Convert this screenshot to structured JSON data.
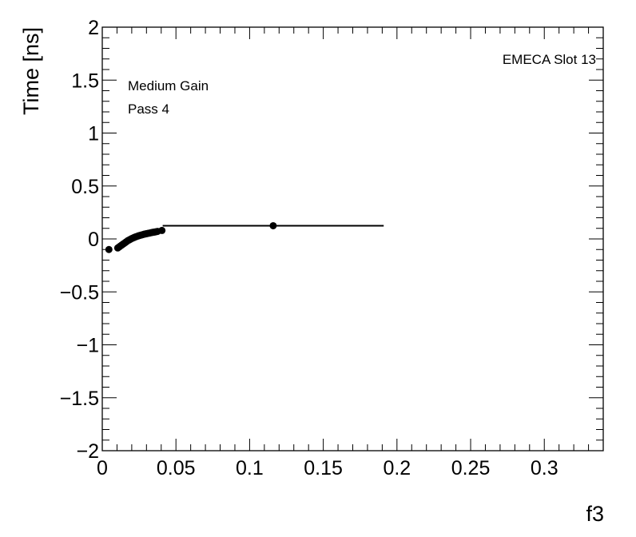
{
  "chart_data": {
    "type": "scatter",
    "xlabel": "f3",
    "ylabel": "Time [ns]",
    "xlim": [
      0,
      0.34
    ],
    "ylim": [
      -2,
      2
    ],
    "x_ticks": [
      {
        "value": 0,
        "label": "0"
      },
      {
        "value": 0.05,
        "label": "0.05"
      },
      {
        "value": 0.1,
        "label": "0.1"
      },
      {
        "value": 0.15,
        "label": "0.15"
      },
      {
        "value": 0.2,
        "label": "0.2"
      },
      {
        "value": 0.25,
        "label": "0.25"
      },
      {
        "value": 0.3,
        "label": "0.3"
      }
    ],
    "y_ticks": [
      {
        "value": -2,
        "label": "−2"
      },
      {
        "value": -1.5,
        "label": "−1.5"
      },
      {
        "value": -1,
        "label": "−1"
      },
      {
        "value": -0.5,
        "label": "−0.5"
      },
      {
        "value": 0,
        "label": "0"
      },
      {
        "value": 0.5,
        "label": "0.5"
      },
      {
        "value": 1,
        "label": "1"
      },
      {
        "value": 1.5,
        "label": "1.5"
      },
      {
        "value": 2,
        "label": "2"
      }
    ],
    "grid": false,
    "annotations": {
      "slot": "EMECA Slot 13",
      "gain": "Medium Gain",
      "pass": "Pass 4"
    },
    "marker_color": "#000000",
    "points": [
      {
        "x": 0.0045,
        "y": -0.1,
        "xerr": 0.001
      },
      {
        "x": 0.0105,
        "y": -0.085,
        "xerr": 0.001
      },
      {
        "x": 0.0115,
        "y": -0.075,
        "xerr": 0.001
      },
      {
        "x": 0.0125,
        "y": -0.065,
        "xerr": 0.001
      },
      {
        "x": 0.0135,
        "y": -0.055,
        "xerr": 0.001
      },
      {
        "x": 0.0145,
        "y": -0.045,
        "xerr": 0.001
      },
      {
        "x": 0.0155,
        "y": -0.035,
        "xerr": 0.001
      },
      {
        "x": 0.0165,
        "y": -0.025,
        "xerr": 0.001
      },
      {
        "x": 0.0175,
        "y": -0.015,
        "xerr": 0.001
      },
      {
        "x": 0.0185,
        "y": -0.008,
        "xerr": 0.001
      },
      {
        "x": 0.0195,
        "y": 0.0,
        "xerr": 0.001
      },
      {
        "x": 0.0205,
        "y": 0.007,
        "xerr": 0.001
      },
      {
        "x": 0.0215,
        "y": 0.013,
        "xerr": 0.001
      },
      {
        "x": 0.0225,
        "y": 0.019,
        "xerr": 0.001
      },
      {
        "x": 0.0235,
        "y": 0.024,
        "xerr": 0.001
      },
      {
        "x": 0.0245,
        "y": 0.029,
        "xerr": 0.001
      },
      {
        "x": 0.0255,
        "y": 0.033,
        "xerr": 0.001
      },
      {
        "x": 0.0265,
        "y": 0.037,
        "xerr": 0.001
      },
      {
        "x": 0.0275,
        "y": 0.041,
        "xerr": 0.001
      },
      {
        "x": 0.0285,
        "y": 0.045,
        "xerr": 0.001
      },
      {
        "x": 0.0295,
        "y": 0.048,
        "xerr": 0.001
      },
      {
        "x": 0.0305,
        "y": 0.051,
        "xerr": 0.001
      },
      {
        "x": 0.0315,
        "y": 0.054,
        "xerr": 0.001
      },
      {
        "x": 0.0325,
        "y": 0.057,
        "xerr": 0.001
      },
      {
        "x": 0.0335,
        "y": 0.06,
        "xerr": 0.001
      },
      {
        "x": 0.0345,
        "y": 0.063,
        "xerr": 0.001
      },
      {
        "x": 0.0355,
        "y": 0.065,
        "xerr": 0.001
      },
      {
        "x": 0.0365,
        "y": 0.068,
        "xerr": 0.001
      },
      {
        "x": 0.0375,
        "y": 0.071,
        "xerr": 0.001
      },
      {
        "x": 0.0405,
        "y": 0.08,
        "xerr": 0.0015
      },
      {
        "x": 0.116,
        "y": 0.125,
        "xerr": 0.075
      }
    ]
  }
}
